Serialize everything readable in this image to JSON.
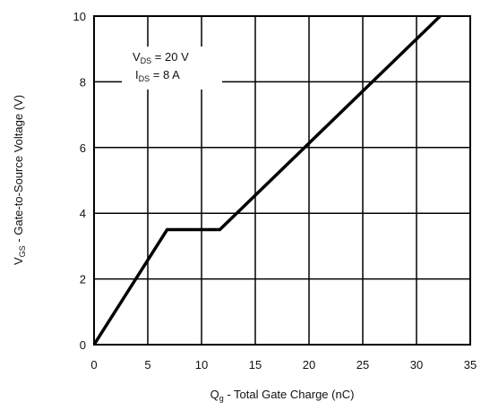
{
  "chart_data": {
    "type": "line",
    "title": "",
    "xlabel": {
      "main": "Q",
      "sub": "g",
      "rest": " - Total Gate Charge (nC)"
    },
    "ylabel": {
      "main": "V",
      "sub": "GS",
      "rest": " - Gate-to-Source Voltage (V)"
    },
    "xlim": [
      0,
      35
    ],
    "ylim": [
      0,
      10
    ],
    "x_ticks": [
      "0",
      "5",
      "10",
      "15",
      "20",
      "25",
      "30",
      "35"
    ],
    "y_ticks": [
      "0",
      "2",
      "4",
      "6",
      "8",
      "10"
    ],
    "grid": true,
    "series": [
      {
        "x": [
          0,
          6.8,
          11.7,
          32.2
        ],
        "y": [
          0,
          3.5,
          3.5,
          10
        ]
      }
    ],
    "annotation": {
      "line1": {
        "main": "V",
        "sub": "DS",
        "rest": " = 20 V"
      },
      "line2": {
        "main": "I",
        "sub": "DS",
        "rest": " =   8 A"
      }
    }
  }
}
